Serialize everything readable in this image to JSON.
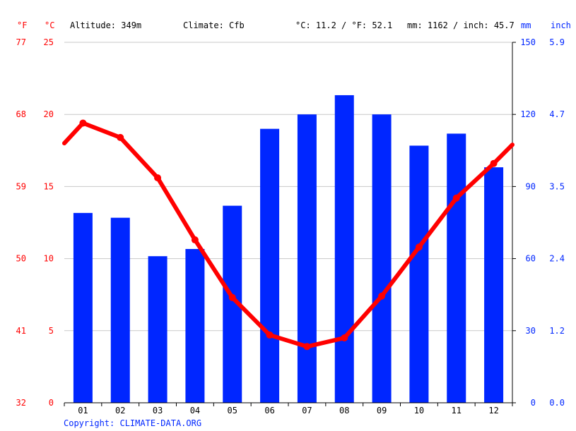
{
  "header": {
    "unit_f": "°F",
    "unit_c": "°C",
    "altitude": "Altitude: 349m",
    "climate": "Climate: Cfb",
    "temp_avg": "°C: 11.2 / °F: 52.1",
    "precip_total": "mm: 1162 / inch: 45.7",
    "unit_mm": "mm",
    "unit_inch": "inch"
  },
  "footer": {
    "copyright": "Copyright: CLIMATE-DATA.ORG"
  },
  "colors": {
    "temperature": "#ff0000",
    "precipitation": "#0026ff",
    "grid": "#c8c8c8",
    "axis": "#000000"
  },
  "chart_data": {
    "type": "bar",
    "categories": [
      "01",
      "02",
      "03",
      "04",
      "05",
      "06",
      "07",
      "08",
      "09",
      "10",
      "11",
      "12"
    ],
    "series": [
      {
        "kind": "bar",
        "axis": "right",
        "unit": "mm",
        "values": [
          79,
          77,
          61,
          64,
          82,
          114,
          120,
          128,
          120,
          107,
          112,
          98
        ]
      },
      {
        "kind": "line",
        "axis": "left",
        "unit": "°C",
        "values": [
          19.4,
          18.4,
          15.6,
          11.3,
          7.3,
          4.7,
          3.9,
          4.5,
          7.4,
          10.8,
          14.2,
          16.6
        ]
      }
    ],
    "line_start_value": 18.0,
    "line_end_value": 17.9,
    "axes": {
      "left_c": {
        "ticks": [
          "25",
          "20",
          "15",
          "10",
          "5",
          "0"
        ],
        "ylim": [
          0,
          25
        ]
      },
      "left_f": {
        "ticks": [
          "77",
          "68",
          "59",
          "50",
          "41",
          "32"
        ]
      },
      "right_mm": {
        "ticks": [
          "150",
          "120",
          "90",
          "60",
          "30",
          "0"
        ],
        "ylim": [
          0,
          150
        ]
      },
      "right_inch": {
        "ticks": [
          "5.9",
          "4.7",
          "3.5",
          "2.4",
          "1.2",
          "0.0"
        ]
      }
    },
    "grid": true
  }
}
